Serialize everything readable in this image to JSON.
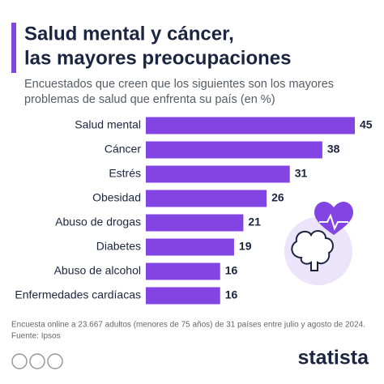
{
  "chart_data": {
    "type": "bar",
    "orientation": "horizontal",
    "title": [
      "Salud mental y cáncer,",
      "las mayores preocupaciones"
    ],
    "subtitle": [
      "Encuestados que creen que los siguientes son los mayores",
      "problemas de salud que enfrenta su país (en %)"
    ],
    "categories": [
      "Salud mental",
      "Cáncer",
      "Estrés",
      "Obesidad",
      "Abuso de drogas",
      "Diabetes",
      "Abuso de alcohol",
      "Enfermedades cardíacas"
    ],
    "values": [
      45,
      38,
      31,
      26,
      21,
      19,
      16,
      16
    ],
    "color": "#8245e3",
    "footnote": [
      "Encuesta online a 23.667 adultos (menores de 75 años) de 31 países entre julio y agosto de 2024.",
      "Fuente: Ipsos"
    ],
    "brand": "statista"
  }
}
